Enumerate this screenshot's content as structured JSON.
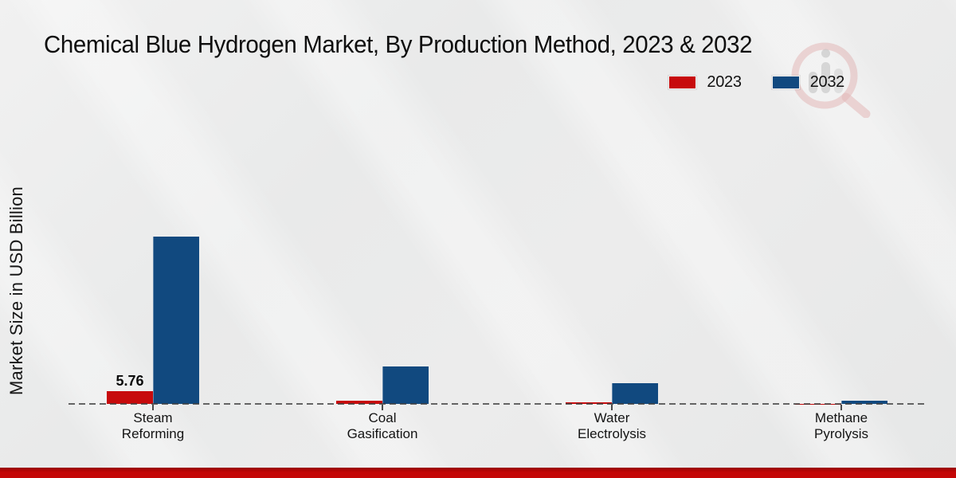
{
  "title": "Chemical Blue Hydrogen Market, By Production Method, 2023 & 2032",
  "y_axis_label": "Market Size in USD Billion",
  "legend": {
    "items": [
      {
        "label": "2023",
        "color": "#c70b0d"
      },
      {
        "label": "2032",
        "color": "#11497f"
      }
    ]
  },
  "footer": {
    "accent_color": "#c40707"
  },
  "watermark": {
    "icon": "market-research-magnifier-logo"
  },
  "chart_data": {
    "type": "bar",
    "title": "Chemical Blue Hydrogen Market, By Production Method, 2023 & 2032",
    "ylabel": "Market Size in USD Billion",
    "categories": [
      "Steam Reforming",
      "Coal Gasification",
      "Water Electrolysis",
      "Methane Pyrolysis"
    ],
    "category_lines": [
      [
        "Steam",
        "Reforming"
      ],
      [
        "Coal",
        "Gasification"
      ],
      [
        "Water",
        "Electrolysis"
      ],
      [
        "Methane",
        "Pyrolysis"
      ]
    ],
    "series": [
      {
        "name": "2023",
        "color": "#c70b0d",
        "values": [
          5.76,
          1.4,
          0.9,
          0.1
        ]
      },
      {
        "name": "2032",
        "color": "#11497f",
        "values": [
          75.6,
          16.9,
          9.4,
          1.6
        ]
      }
    ],
    "value_labels": [
      {
        "series_index": 0,
        "category_index": 0,
        "text": "5.76"
      }
    ],
    "ylim": [
      0,
      80
    ],
    "grid": false,
    "baseline_style": "dashed",
    "legend_position": "top-right"
  }
}
